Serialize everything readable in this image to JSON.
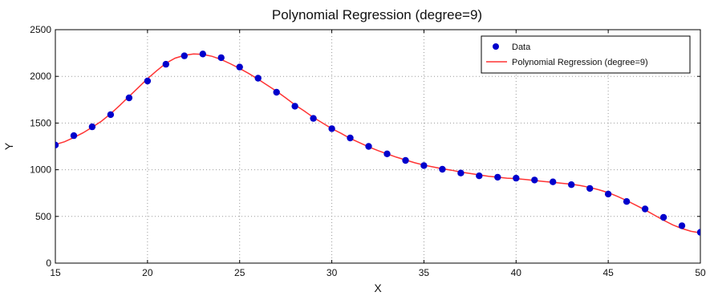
{
  "chart_data": {
    "type": "scatter",
    "title": "Polynomial Regression (degree=9)",
    "xlabel": "X",
    "ylabel": "Y",
    "xlim": [
      15,
      50
    ],
    "ylim": [
      0,
      2500
    ],
    "xticks": [
      15,
      20,
      25,
      30,
      35,
      40,
      45,
      50
    ],
    "yticks": [
      0,
      500,
      1000,
      1500,
      2000,
      2500
    ],
    "grid": true,
    "legend_position": "top-right",
    "series": [
      {
        "name": "Data",
        "kind": "scatter",
        "color": "#0000cc",
        "x": [
          15,
          16,
          17,
          18,
          19,
          20,
          21,
          22,
          23,
          24,
          25,
          26,
          27,
          28,
          29,
          30,
          31,
          32,
          33,
          34,
          35,
          36,
          37,
          38,
          39,
          40,
          41,
          42,
          43,
          44,
          45,
          46,
          47,
          48,
          49,
          50
        ],
        "y": [
          1265,
          1365,
          1460,
          1590,
          1770,
          1950,
          2130,
          2220,
          2240,
          2200,
          2100,
          1980,
          1830,
          1680,
          1550,
          1440,
          1340,
          1250,
          1170,
          1100,
          1045,
          1005,
          965,
          935,
          920,
          910,
          890,
          870,
          840,
          800,
          740,
          660,
          580,
          490,
          400,
          330
        ]
      },
      {
        "name": "Polynomial Regression (degree=9)",
        "kind": "line",
        "color": "#ff3333",
        "x": [
          15,
          15.5,
          16,
          16.5,
          17,
          17.5,
          18,
          18.5,
          19,
          19.5,
          20,
          20.5,
          21,
          21.5,
          22,
          22.5,
          23,
          23.5,
          24,
          24.5,
          25,
          25.5,
          26,
          26.5,
          27,
          27.5,
          28,
          28.5,
          29,
          29.5,
          30,
          30.5,
          31,
          31.5,
          32,
          32.5,
          33,
          33.5,
          34,
          34.5,
          35,
          35.5,
          36,
          36.5,
          37,
          37.5,
          38,
          38.5,
          39,
          39.5,
          40,
          40.5,
          41,
          41.5,
          42,
          42.5,
          43,
          43.5,
          44,
          44.5,
          45,
          45.5,
          46,
          46.5,
          47,
          47.5,
          48,
          48.5,
          49,
          49.5,
          50
        ],
        "y": [
          1270,
          1300,
          1345,
          1395,
          1455,
          1520,
          1600,
          1690,
          1785,
          1880,
          1975,
          2060,
          2140,
          2195,
          2225,
          2240,
          2235,
          2215,
          2180,
          2135,
          2085,
          2030,
          1970,
          1905,
          1840,
          1770,
          1695,
          1630,
          1560,
          1500,
          1440,
          1390,
          1335,
          1290,
          1245,
          1205,
          1170,
          1135,
          1105,
          1075,
          1050,
          1030,
          1010,
          995,
          975,
          960,
          945,
          930,
          920,
          910,
          905,
          895,
          885,
          875,
          865,
          855,
          845,
          830,
          810,
          785,
          755,
          715,
          670,
          620,
          570,
          515,
          460,
          410,
          370,
          340,
          325
        ]
      }
    ]
  }
}
